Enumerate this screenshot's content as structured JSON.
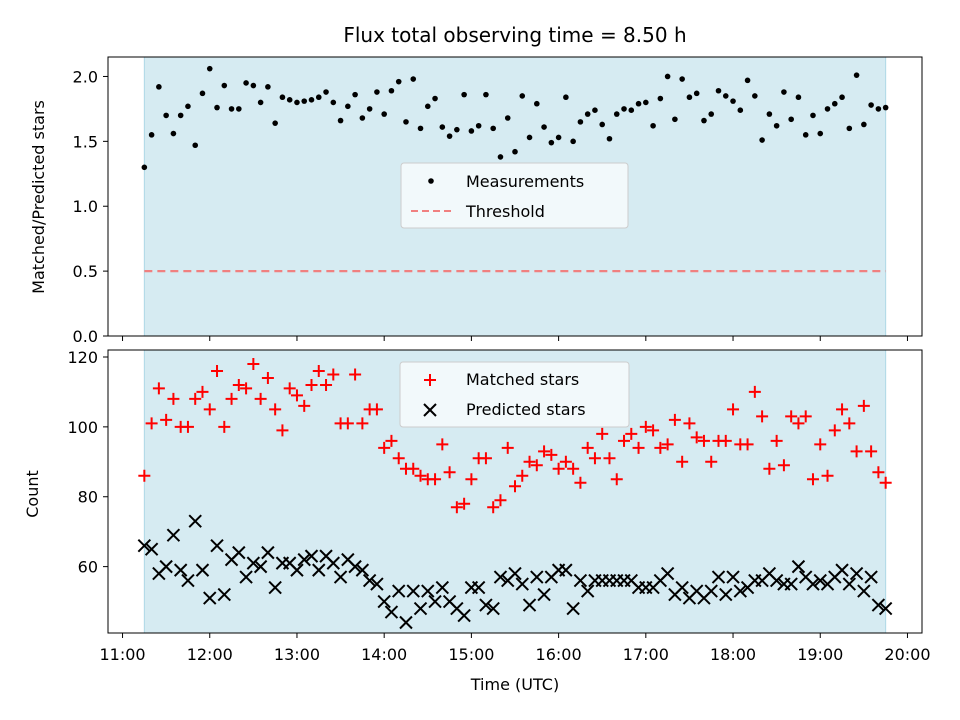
{
  "title": "Flux total observing time = 8.50 h",
  "xlabel": "Time (UTC)",
  "x_ticks": [
    "11:00",
    "12:00",
    "13:00",
    "14:00",
    "15:00",
    "16:00",
    "17:00",
    "18:00",
    "19:00",
    "20:00"
  ],
  "colors": {
    "span": "#add8e6",
    "measurement": "#000000",
    "threshold": "#f08080",
    "matched": "#ff0000",
    "predicted": "#000000"
  },
  "chart_data": [
    {
      "type": "scatter",
      "title": "Flux total observing time = 8.50 h",
      "xlabel": "Time (UTC)",
      "ylabel": "Matched/Predicted stars",
      "xlim": [
        "10:50",
        "20:10"
      ],
      "ylim": [
        0,
        2.15
      ],
      "y_ticks": [
        "0.0",
        "0.5",
        "1.0",
        "1.5",
        "2.0"
      ],
      "observing_span": [
        "11:15",
        "19:45"
      ],
      "threshold": 0.5,
      "legend": {
        "position": "center",
        "entries": [
          "Measurements",
          "Threshold"
        ]
      },
      "series": [
        {
          "name": "Measurements",
          "marker": "dot",
          "x": [
            "11:15",
            "11:20",
            "11:25",
            "11:30",
            "11:35",
            "11:40",
            "11:45",
            "11:50",
            "11:55",
            "12:00",
            "12:05",
            "12:10",
            "12:15",
            "12:20",
            "12:25",
            "12:30",
            "12:35",
            "12:40",
            "12:45",
            "12:50",
            "12:55",
            "13:00",
            "13:05",
            "13:10",
            "13:15",
            "13:20",
            "13:25",
            "13:30",
            "13:35",
            "13:40",
            "13:45",
            "13:50",
            "13:55",
            "14:00",
            "14:05",
            "14:10",
            "14:15",
            "14:20",
            "14:25",
            "14:30",
            "14:35",
            "14:40",
            "14:45",
            "14:50",
            "14:55",
            "15:00",
            "15:05",
            "15:10",
            "15:15",
            "15:20",
            "15:25",
            "15:30",
            "15:35",
            "15:40",
            "15:45",
            "15:50",
            "15:55",
            "16:00",
            "16:05",
            "16:10",
            "16:15",
            "16:20",
            "16:25",
            "16:30",
            "16:35",
            "16:40",
            "16:45",
            "16:50",
            "16:55",
            "17:00",
            "17:05",
            "17:10",
            "17:15",
            "17:20",
            "17:25",
            "17:30",
            "17:35",
            "17:40",
            "17:45",
            "17:50",
            "17:55",
            "18:00",
            "18:05",
            "18:10",
            "18:15",
            "18:20",
            "18:25",
            "18:30",
            "18:35",
            "18:40",
            "18:45",
            "18:50",
            "18:55",
            "19:00",
            "19:05",
            "19:10",
            "19:15",
            "19:20",
            "19:25",
            "19:30",
            "19:35",
            "19:40",
            "19:45"
          ],
          "y": [
            1.3,
            1.55,
            1.92,
            1.7,
            1.56,
            1.7,
            1.77,
            1.47,
            1.87,
            2.06,
            1.76,
            1.93,
            1.75,
            1.75,
            1.95,
            1.93,
            1.8,
            1.92,
            1.64,
            1.84,
            1.82,
            1.8,
            1.81,
            1.82,
            1.84,
            1.88,
            1.8,
            1.66,
            1.77,
            1.86,
            1.68,
            1.75,
            1.88,
            1.71,
            1.89,
            1.96,
            1.65,
            1.98,
            1.6,
            1.77,
            1.83,
            1.61,
            1.54,
            1.59,
            1.86,
            1.58,
            1.62,
            1.86,
            1.6,
            1.38,
            1.68,
            1.42,
            1.85,
            1.53,
            1.79,
            1.61,
            1.49,
            1.53,
            1.84,
            1.5,
            1.65,
            1.71,
            1.74,
            1.63,
            1.52,
            1.71,
            1.75,
            1.74,
            1.79,
            1.8,
            1.62,
            1.83,
            2.0,
            1.67,
            1.98,
            1.84,
            1.87,
            1.66,
            1.71,
            1.89,
            1.85,
            1.81,
            1.74,
            1.97,
            1.85,
            1.51,
            1.71,
            1.62,
            1.88,
            1.67,
            1.84,
            1.55,
            1.7,
            1.56,
            1.75,
            1.79,
            1.84,
            1.6,
            2.01,
            1.63,
            1.78,
            1.75,
            1.76
          ]
        }
      ]
    },
    {
      "type": "scatter",
      "xlabel": "Time (UTC)",
      "ylabel": "Count",
      "xlim": [
        "10:50",
        "20:10"
      ],
      "ylim": [
        41,
        122
      ],
      "y_ticks": [
        "60",
        "80",
        "100",
        "120"
      ],
      "observing_span": [
        "11:15",
        "19:45"
      ],
      "legend": {
        "position": "top-center",
        "entries": [
          "Matched stars",
          "Predicted stars"
        ]
      },
      "series": [
        {
          "name": "Matched stars",
          "marker": "plus",
          "x": [
            "11:15",
            "11:20",
            "11:25",
            "11:30",
            "11:35",
            "11:40",
            "11:45",
            "11:50",
            "11:55",
            "12:00",
            "12:05",
            "12:10",
            "12:15",
            "12:20",
            "12:25",
            "12:30",
            "12:35",
            "12:40",
            "12:45",
            "12:50",
            "12:55",
            "13:00",
            "13:05",
            "13:10",
            "13:15",
            "13:20",
            "13:25",
            "13:30",
            "13:35",
            "13:40",
            "13:45",
            "13:50",
            "13:55",
            "14:00",
            "14:05",
            "14:10",
            "14:15",
            "14:20",
            "14:25",
            "14:30",
            "14:35",
            "14:40",
            "14:45",
            "14:50",
            "14:55",
            "15:00",
            "15:05",
            "15:10",
            "15:15",
            "15:20",
            "15:25",
            "15:30",
            "15:35",
            "15:40",
            "15:45",
            "15:50",
            "15:55",
            "16:00",
            "16:05",
            "16:10",
            "16:15",
            "16:20",
            "16:25",
            "16:30",
            "16:35",
            "16:40",
            "16:45",
            "16:50",
            "16:55",
            "17:00",
            "17:05",
            "17:10",
            "17:15",
            "17:20",
            "17:25",
            "17:30",
            "17:35",
            "17:40",
            "17:45",
            "17:50",
            "17:55",
            "18:00",
            "18:05",
            "18:10",
            "18:15",
            "18:20",
            "18:25",
            "18:30",
            "18:35",
            "18:40",
            "18:45",
            "18:50",
            "18:55",
            "19:00",
            "19:05",
            "19:10",
            "19:15",
            "19:20",
            "19:25",
            "19:30",
            "19:35",
            "19:40",
            "19:45"
          ],
          "y": [
            86,
            101,
            111,
            102,
            108,
            100,
            100,
            108,
            110,
            105,
            116,
            100,
            108,
            112,
            111,
            118,
            108,
            114,
            105,
            99,
            111,
            109,
            106,
            112,
            116,
            112,
            115,
            101,
            101,
            115,
            101,
            105,
            105,
            94,
            96,
            91,
            88,
            88,
            86,
            85,
            85,
            95,
            87,
            77,
            78,
            85,
            91,
            91,
            77,
            79,
            94,
            83,
            86,
            90,
            89,
            93,
            92,
            88,
            90,
            88,
            84,
            94,
            91,
            98,
            91,
            85,
            96,
            98,
            94,
            100,
            99,
            94,
            95,
            102,
            90,
            101,
            97,
            96,
            90,
            96,
            96,
            105,
            95,
            95,
            110,
            103,
            88,
            96,
            89,
            103,
            101,
            103,
            85,
            95,
            86,
            99,
            105,
            101,
            93,
            106,
            93,
            87,
            84
          ]
        },
        {
          "name": "Predicted stars",
          "marker": "x",
          "x": [
            "11:15",
            "11:20",
            "11:25",
            "11:30",
            "11:35",
            "11:40",
            "11:45",
            "11:50",
            "11:55",
            "12:00",
            "12:05",
            "12:10",
            "12:15",
            "12:20",
            "12:25",
            "12:30",
            "12:35",
            "12:40",
            "12:45",
            "12:50",
            "12:55",
            "13:00",
            "13:05",
            "13:10",
            "13:15",
            "13:20",
            "13:25",
            "13:30",
            "13:35",
            "13:40",
            "13:45",
            "13:50",
            "13:55",
            "14:00",
            "14:05",
            "14:10",
            "14:15",
            "14:20",
            "14:25",
            "14:30",
            "14:35",
            "14:40",
            "14:45",
            "14:50",
            "14:55",
            "15:00",
            "15:05",
            "15:10",
            "15:15",
            "15:20",
            "15:25",
            "15:30",
            "15:35",
            "15:40",
            "15:45",
            "15:50",
            "15:55",
            "16:00",
            "16:05",
            "16:10",
            "16:15",
            "16:20",
            "16:25",
            "16:30",
            "16:35",
            "16:40",
            "16:45",
            "16:50",
            "16:55",
            "17:00",
            "17:05",
            "17:10",
            "17:15",
            "17:20",
            "17:25",
            "17:30",
            "17:35",
            "17:40",
            "17:45",
            "17:50",
            "17:55",
            "18:00",
            "18:05",
            "18:10",
            "18:15",
            "18:20",
            "18:25",
            "18:30",
            "18:35",
            "18:40",
            "18:45",
            "18:50",
            "18:55",
            "19:00",
            "19:05",
            "19:10",
            "19:15",
            "19:20",
            "19:25",
            "19:30",
            "19:35",
            "19:40",
            "19:45"
          ],
          "y": [
            66,
            65,
            58,
            60,
            69,
            59,
            56,
            73,
            59,
            51,
            66,
            52,
            62,
            64,
            57,
            61,
            60,
            64,
            54,
            61,
            61,
            59,
            62,
            63,
            59,
            63,
            61,
            57,
            62,
            60,
            59,
            56,
            55,
            50,
            47,
            53,
            44,
            53,
            48,
            53,
            50,
            54,
            50,
            48,
            46,
            54,
            54,
            49,
            48,
            57,
            56,
            58,
            55,
            49,
            57,
            52,
            57,
            59,
            59,
            48,
            56,
            53,
            56,
            56,
            56,
            56,
            56,
            56,
            54,
            54,
            54,
            56,
            58,
            52,
            54,
            51,
            53,
            51,
            53,
            57,
            52,
            57,
            53,
            54,
            56,
            56,
            58,
            56,
            55,
            55,
            60,
            57,
            55,
            56,
            55,
            57,
            59,
            55,
            58,
            53,
            57,
            49,
            48
          ]
        }
      ]
    }
  ]
}
